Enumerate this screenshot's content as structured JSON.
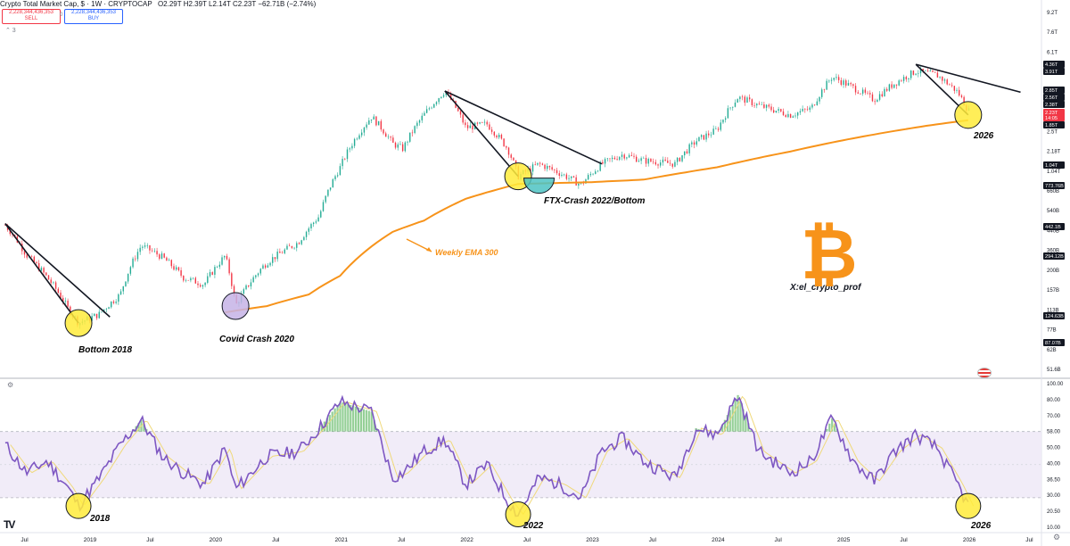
{
  "header": {
    "symbol": "Crypto Total Market Cap, $ · 1W · CRYPTOCAP",
    "ohlc": "O2.29T H2.39T L2.14T C2.23T −62.71B (−2.74%)",
    "sell_price": "2,228,344,436,353",
    "sell_label": "SELL",
    "spread": "0",
    "buy_price": "2,228,344,436,353",
    "buy_label": "BUY",
    "collapse": "⌃ 3"
  },
  "colors": {
    "candle_up": "#22ab94",
    "candle_down": "#f23645",
    "ema": "#f7931a",
    "rsi_line": "#7e57c2",
    "rsi_signal": "#f0d97a",
    "rsi_band": "#ede7f6",
    "highlight_circle": "#ffeb3b",
    "btc_orange": "#f7931a"
  },
  "annotations": {
    "bottom_2018": "Bottom 2018",
    "covid": "Covid Crash 2020",
    "ftx": "FTX-Crash 2022/Bottom",
    "ema": "Weekly EMA 300",
    "label_2026": "2026",
    "handle": "X:el_crypto_prof",
    "rsi_2018": "2018",
    "rsi_2022": "2022",
    "rsi_2026": "2026"
  },
  "icons": {
    "bitcoin": "₿",
    "tradingview": "TV",
    "settings": "gear-icon",
    "flag": "us-flag-icon",
    "rsi_settings": "⚙"
  },
  "price_axis": {
    "ticks": [
      "9.2T",
      "7.6T",
      "6.1T",
      "5.1T",
      "3.7T",
      "3.3T",
      "2.5T",
      "2.18T",
      "1.04T",
      "660B",
      "540B",
      "440B",
      "360B",
      "200B",
      "157B",
      "113B",
      "77B",
      "62B",
      "51.6B"
    ],
    "badges": [
      {
        "text": "4.36T",
        "color": "#131722"
      },
      {
        "text": "3.91T",
        "color": "#131722"
      },
      {
        "text": "2.85T",
        "color": "#131722"
      },
      {
        "text": "2.56T",
        "color": "#131722"
      },
      {
        "text": "2.38T",
        "color": "#131722"
      },
      {
        "text": "2.23T",
        "color": "#f23645"
      },
      {
        "text": "14:05",
        "color": "#f23645"
      },
      {
        "text": "1.85T",
        "color": "#131722"
      },
      {
        "text": "1.04T",
        "color": "#131722"
      },
      {
        "text": "773.76B",
        "color": "#131722"
      },
      {
        "text": "442.1B",
        "color": "#131722"
      },
      {
        "text": "294.12B",
        "color": "#131722"
      },
      {
        "text": "124.63B",
        "color": "#131722"
      },
      {
        "text": "87.07B",
        "color": "#131722"
      }
    ]
  },
  "rsi_axis": {
    "ticks": [
      "100.00",
      "80.00",
      "70.00",
      "58.00",
      "50.00",
      "40.00",
      "36.50",
      "30.00",
      "20.50",
      "10.00"
    ]
  },
  "time_axis": [
    "Jul",
    "2019",
    "Jul",
    "2020",
    "Jul",
    "2021",
    "Jul",
    "2022",
    "Jul",
    "2023",
    "Jul",
    "2024",
    "Jul",
    "2025",
    "Jul",
    "2026",
    "Jul"
  ],
  "chart_data": {
    "type": "candlestick",
    "title": "Crypto Total Market Cap, $ · 1W · CRYPTOCAP",
    "x_range": [
      "2018-05",
      "2026-08"
    ],
    "y_scale": "log",
    "y_unit": "USD",
    "price_trend": [
      [
        "2018-05",
        440000000000.0
      ],
      [
        "2018-07",
        290000000000.0
      ],
      [
        "2018-09",
        210000000000.0
      ],
      [
        "2018-11",
        135000000000.0
      ],
      [
        "2018-12",
        110000000000.0
      ],
      [
        "2019-02",
        125000000000.0
      ],
      [
        "2019-04",
        165000000000.0
      ],
      [
        "2019-06",
        330000000000.0
      ],
      [
        "2019-08",
        280000000000.0
      ],
      [
        "2019-10",
        210000000000.0
      ],
      [
        "2019-12",
        190000000000.0
      ],
      [
        "2020-02",
        285000000000.0
      ],
      [
        "2020-03",
        140000000000.0
      ],
      [
        "2020-06",
        260000000000.0
      ],
      [
        "2020-09",
        345000000000.0
      ],
      [
        "2020-11",
        500000000000.0
      ],
      [
        "2021-01",
        1000000000000.0
      ],
      [
        "2021-04",
        2050000000000.0
      ],
      [
        "2021-06",
        1400000000000.0
      ],
      [
        "2021-07",
        1300000000000.0
      ],
      [
        "2021-09",
        2100000000000.0
      ],
      [
        "2021-11",
        2950000000000.0
      ],
      [
        "2022-01",
        1750000000000.0
      ],
      [
        "2022-03",
        1850000000000.0
      ],
      [
        "2022-05",
        1300000000000.0
      ],
      [
        "2022-06",
        880000000000.0
      ],
      [
        "2022-08",
        1050000000000.0
      ],
      [
        "2022-10",
        920000000000.0
      ],
      [
        "2022-12",
        780000000000.0
      ],
      [
        "2023-02",
        1050000000000.0
      ],
      [
        "2023-04",
        1200000000000.0
      ],
      [
        "2023-06",
        1100000000000.0
      ],
      [
        "2023-09",
        1050000000000.0
      ],
      [
        "2023-11",
        1450000000000.0
      ],
      [
        "2024-01",
        1700000000000.0
      ],
      [
        "2024-03",
        2700000000000.0
      ],
      [
        "2024-05",
        2400000000000.0
      ],
      [
        "2024-08",
        2100000000000.0
      ],
      [
        "2024-10",
        2300000000000.0
      ],
      [
        "2024-12",
        3600000000000.0
      ],
      [
        "2025-02",
        3100000000000.0
      ],
      [
        "2025-04",
        2600000000000.0
      ],
      [
        "2025-06",
        3300000000000.0
      ],
      [
        "2025-08",
        3900000000000.0
      ],
      [
        "2025-10",
        3700000000000.0
      ],
      [
        "2025-12",
        2900000000000.0
      ],
      [
        "2026-01",
        2230000000000.0
      ]
    ],
    "ema_300": [
      [
        "2020-02",
        128000000000.0
      ],
      [
        "2020-06",
        140000000000.0
      ],
      [
        "2020-10",
        165000000000.0
      ],
      [
        "2021-01",
        215000000000.0
      ],
      [
        "2021-06",
        400000000000.0
      ],
      [
        "2021-09",
        470000000000.0
      ],
      [
        "2022-01",
        640000000000.0
      ],
      [
        "2022-06",
        790000000000.0
      ],
      [
        "2023-01",
        810000000000.0
      ],
      [
        "2023-06",
        840000000000.0
      ],
      [
        "2024-01",
        1000000000000.0
      ],
      [
        "2024-08",
        1250000000000.0
      ],
      [
        "2025-03",
        1550000000000.0
      ],
      [
        "2025-09",
        1800000000000.0
      ],
      [
        "2026-01",
        1950000000000.0
      ]
    ],
    "rsi_range": [
      10,
      100
    ],
    "rsi_series": [
      [
        "2018-05",
        62
      ],
      [
        "2018-07",
        45
      ],
      [
        "2018-09",
        52
      ],
      [
        "2018-11",
        36
      ],
      [
        "2018-12",
        25
      ],
      [
        "2019-02",
        42
      ],
      [
        "2019-04",
        62
      ],
      [
        "2019-06",
        77
      ],
      [
        "2019-08",
        55
      ],
      [
        "2019-10",
        45
      ],
      [
        "2019-12",
        38
      ],
      [
        "2020-02",
        60
      ],
      [
        "2020-03",
        35
      ],
      [
        "2020-06",
        55
      ],
      [
        "2020-09",
        58
      ],
      [
        "2020-11",
        72
      ],
      [
        "2021-01",
        88
      ],
      [
        "2021-04",
        82
      ],
      [
        "2021-06",
        42
      ],
      [
        "2021-07",
        45
      ],
      [
        "2021-09",
        58
      ],
      [
        "2021-11",
        65
      ],
      [
        "2022-01",
        38
      ],
      [
        "2022-03",
        50
      ],
      [
        "2022-05",
        28
      ],
      [
        "2022-06",
        20
      ],
      [
        "2022-08",
        42
      ],
      [
        "2022-10",
        38
      ],
      [
        "2022-12",
        30
      ],
      [
        "2023-02",
        58
      ],
      [
        "2023-04",
        66
      ],
      [
        "2023-06",
        52
      ],
      [
        "2023-09",
        42
      ],
      [
        "2023-11",
        72
      ],
      [
        "2024-01",
        68
      ],
      [
        "2024-03",
        92
      ],
      [
        "2024-05",
        58
      ],
      [
        "2024-08",
        45
      ],
      [
        "2024-10",
        52
      ],
      [
        "2024-12",
        78
      ],
      [
        "2025-02",
        52
      ],
      [
        "2025-04",
        40
      ],
      [
        "2025-06",
        58
      ],
      [
        "2025-08",
        68
      ],
      [
        "2025-10",
        60
      ],
      [
        "2025-12",
        38
      ],
      [
        "2026-01",
        25
      ]
    ],
    "trendlines": [
      {
        "from": [
          "2018-05",
          450000000000.0
        ],
        "to": [
          "2019-03",
          120000000000.0
        ]
      },
      {
        "from": [
          "2018-05",
          450000000000.0
        ],
        "to": [
          "2018-12",
          110000000000.0
        ]
      },
      {
        "from": [
          "2021-11",
          2950000000000.0
        ],
        "to": [
          "2023-02",
          1050000000000.0
        ]
      },
      {
        "from": [
          "2021-11",
          2950000000000.0
        ],
        "to": [
          "2022-06",
          880000000000.0
        ]
      },
      {
        "from": [
          "2025-08",
          4300000000000.0
        ],
        "to": [
          "2026-06",
          2900000000000.0
        ]
      },
      {
        "from": [
          "2025-08",
          4300000000000.0
        ],
        "to": [
          "2026-01",
          2100000000000.0
        ]
      }
    ],
    "markers": [
      {
        "date": "2018-12",
        "value": 110000000000.0,
        "label": "Bottom 2018"
      },
      {
        "date": "2020-03",
        "value": 140000000000.0,
        "label": "Covid Crash 2020"
      },
      {
        "date": "2022-06",
        "value": 880000000000.0,
        "label": "FTX-Crash 2022/Bottom"
      },
      {
        "date": "2026-01",
        "value": 2100000000000.0,
        "label": "2026"
      }
    ],
    "rsi_markers": [
      {
        "date": "2018-12",
        "value": 25,
        "label": "2018"
      },
      {
        "date": "2022-06",
        "value": 20,
        "label": "2022"
      },
      {
        "date": "2026-01",
        "value": 25,
        "label": "2026"
      }
    ]
  }
}
